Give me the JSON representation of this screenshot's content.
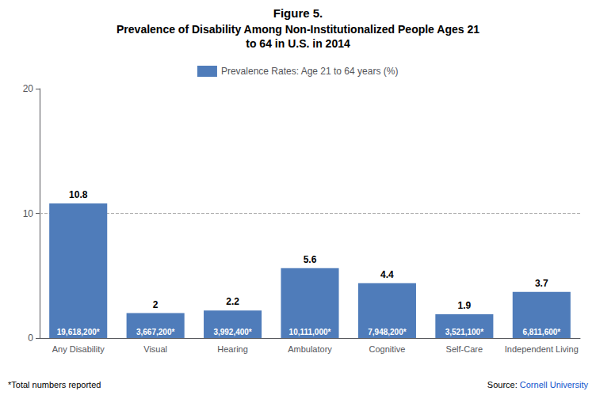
{
  "chart_data": {
    "type": "bar",
    "title": "Figure 5.",
    "subtitle": "Prevalence of Disability Among Non-Institutionalized People Ages 21\nto 64 in U.S. in 2014",
    "categories": [
      "Any Disability",
      "Visual",
      "Hearing",
      "Ambulatory",
      "Cognitive",
      "Self-Care",
      "Independent Living"
    ],
    "series": [
      {
        "name": "Prevalence Rates: Age 21 to 64 years (%)",
        "color": "#4f7cba",
        "values": [
          10.8,
          2.0,
          2.2,
          5.6,
          4.4,
          1.9,
          3.7
        ],
        "totals": [
          "19,618,200*",
          "3,667,200*",
          "3,992,400*",
          "10,111,000*",
          "7,948,200*",
          "3,521,100*",
          "6,811,600*"
        ]
      }
    ],
    "ylim": [
      0,
      20
    ],
    "yticks": [
      0,
      10,
      20
    ],
    "grid": false,
    "legend": "top",
    "data_labels": true,
    "hlines": [
      {
        "value": 10,
        "color": "#aaaaaa",
        "line_style": "dashed"
      }
    ],
    "annotations": [
      {
        "text": "*Total numbers reported"
      },
      {
        "text": "Source:"
      },
      {
        "text": "Cornell University",
        "color": "#1155CC"
      }
    ]
  }
}
